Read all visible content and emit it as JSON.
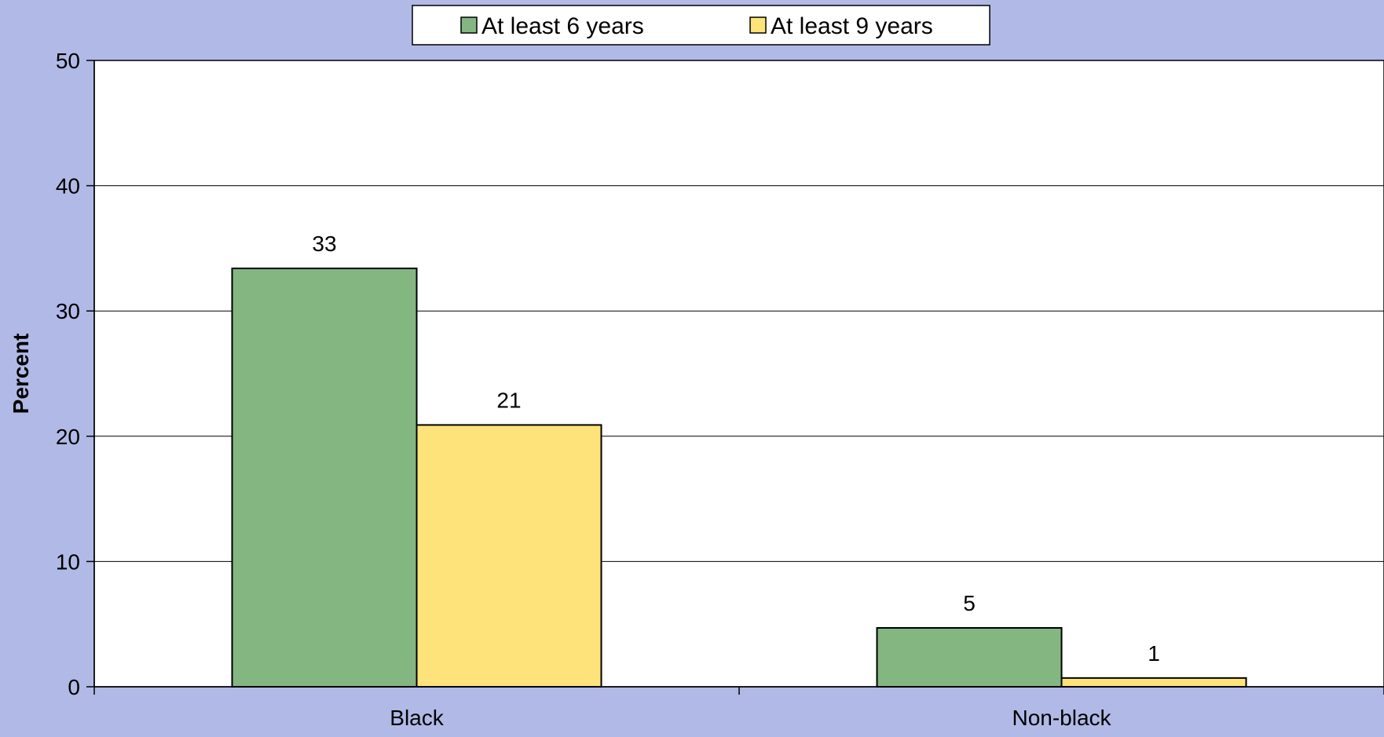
{
  "chart_data": {
    "type": "bar",
    "categories": [
      "Black",
      "Non-black"
    ],
    "series": [
      {
        "name": "At least 6 years",
        "values": [
          33.4,
          4.7
        ],
        "labels": [
          "33",
          "5"
        ],
        "color": "#84b682"
      },
      {
        "name": "At least 9 years",
        "values": [
          20.9,
          0.7
        ],
        "labels": [
          "21",
          "1"
        ],
        "color": "#fee37b"
      }
    ],
    "ylabel": "Percent",
    "xlabel": "",
    "ylim": [
      0,
      50
    ],
    "yticks": [
      "0",
      "10",
      "20",
      "30",
      "40",
      "50"
    ],
    "grid": true,
    "legend_position": "top-center",
    "background_color": "#b1b9e6",
    "plot_background": "#ffffff"
  }
}
